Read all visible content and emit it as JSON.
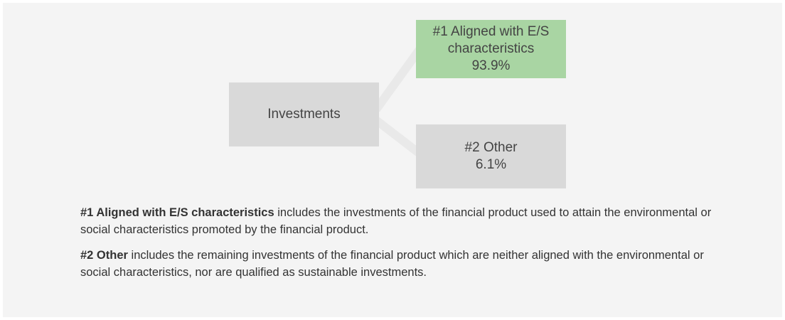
{
  "nodes": [
    {
      "label": "Investments"
    },
    {
      "label": "#1 Aligned with E/S characteristics",
      "value": "93.9%"
    },
    {
      "label": "#2 Other",
      "value": "6.1%"
    }
  ],
  "notes": [
    {
      "term": "#1 Aligned with E/S characteristics",
      "text": "includes the investments of the financial product used to attain the environmental or social characteristics promoted by the financial product."
    },
    {
      "term": "#2 Other",
      "text": "includes the remaining investments of the financial product which are neither aligned with the environmental or social characteristics, nor are qualified as sustainable investments."
    }
  ]
}
